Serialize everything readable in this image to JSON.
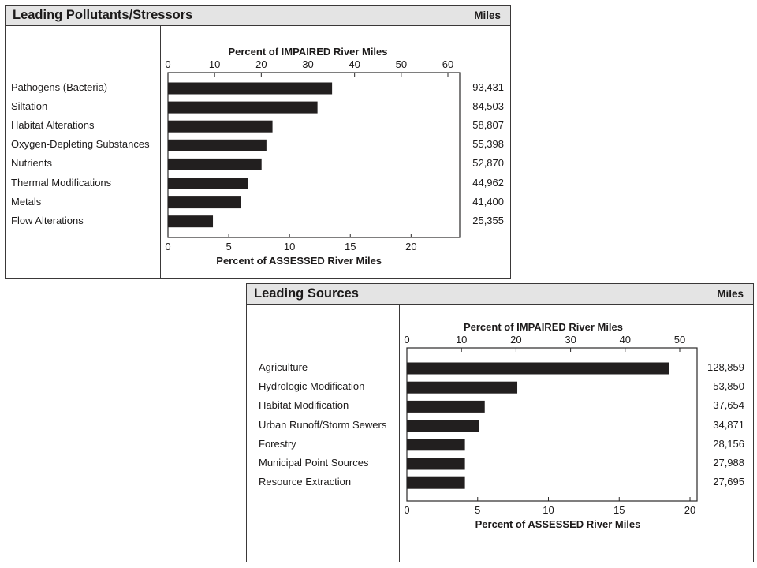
{
  "chart_data": [
    {
      "type": "bar",
      "orientation": "horizontal",
      "title": "Leading Pollutants/Stressors",
      "unit_label": "Miles",
      "top_axis_label": "Percent of IMPAIRED River Miles",
      "bottom_axis_label": "Percent of ASSESSED River Miles",
      "top_axis_ticks": [
        0,
        10,
        20,
        30,
        40,
        50,
        60
      ],
      "bottom_axis_ticks": [
        0,
        5,
        10,
        15,
        20
      ],
      "bottom_axis_range": [
        0,
        24
      ],
      "categories": [
        "Pathogens (Bacteria)",
        "Siltation",
        "Habitat Alterations",
        "Oxygen-Depleting Substances",
        "Nutrients",
        "Thermal Modifications",
        "Metals",
        "Flow Alterations"
      ],
      "values_percent_assessed": [
        13.5,
        12.3,
        8.6,
        8.1,
        7.7,
        6.6,
        6.0,
        3.7
      ],
      "miles": [
        "93,431",
        "84,503",
        "58,807",
        "55,398",
        "52,870",
        "44,962",
        "41,400",
        "25,355"
      ]
    },
    {
      "type": "bar",
      "orientation": "horizontal",
      "title": "Leading Sources",
      "unit_label": "Miles",
      "top_axis_label": "Percent of IMPAIRED River Miles",
      "bottom_axis_label": "Percent of ASSESSED River Miles",
      "top_axis_ticks": [
        0,
        10,
        20,
        30,
        40,
        50
      ],
      "bottom_axis_ticks": [
        0,
        5,
        10,
        15,
        20
      ],
      "bottom_axis_range": [
        0,
        20.5
      ],
      "categories": [
        "Agriculture",
        "Hydrologic Modification",
        "Habitat Modification",
        "Urban Runoff/Storm Sewers",
        "Forestry",
        "Municipal Point Sources",
        "Resource Extraction"
      ],
      "values_percent_assessed": [
        18.5,
        7.8,
        5.5,
        5.1,
        4.1,
        4.1,
        4.1
      ],
      "miles": [
        "128,859",
        "53,850",
        "37,654",
        "34,871",
        "28,156",
        "27,988",
        "27,695"
      ]
    }
  ]
}
